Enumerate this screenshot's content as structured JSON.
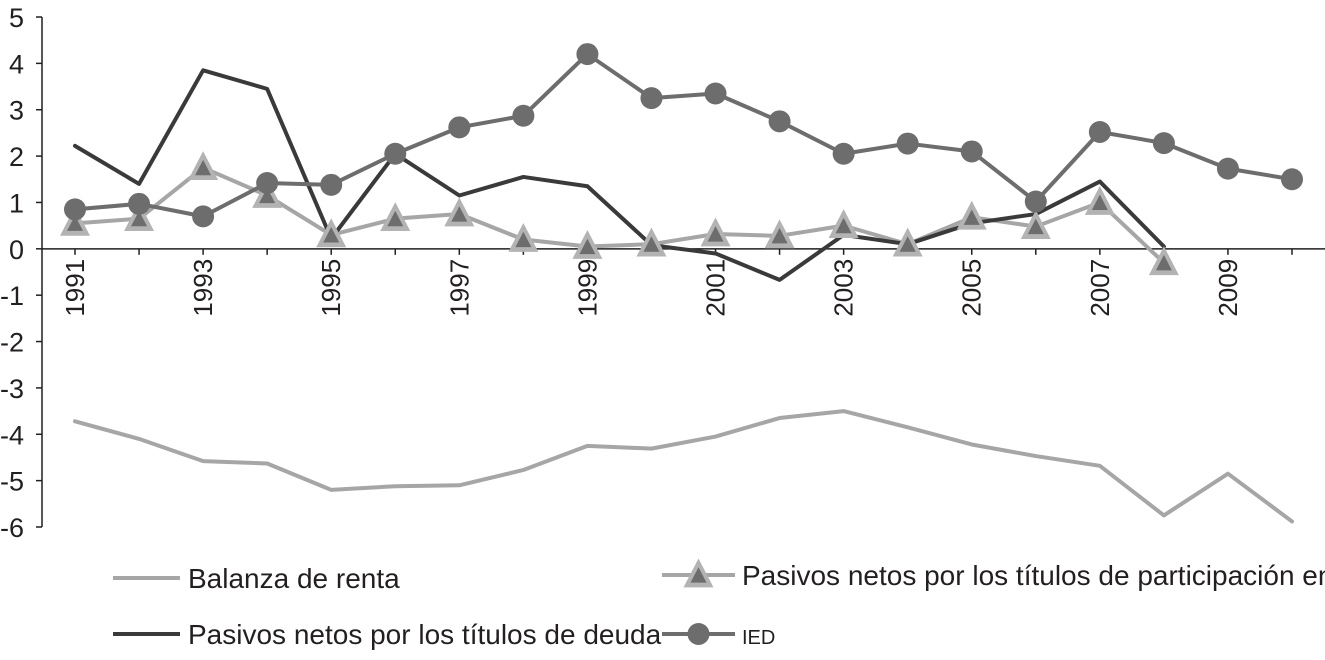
{
  "chart_data": {
    "type": "line",
    "title": "",
    "xlabel": "",
    "ylabel": "",
    "x": [
      1991,
      1992,
      1993,
      1994,
      1995,
      1996,
      1997,
      1998,
      1999,
      2000,
      2001,
      2002,
      2003,
      2004,
      2005,
      2006,
      2007,
      2008,
      2009,
      2010
    ],
    "x_tick_labels": [
      "1991",
      "1993",
      "1995",
      "1997",
      "1999",
      "2001",
      "2003",
      "2005",
      "2007",
      "2009"
    ],
    "y_tick_labels": [
      "5",
      "4",
      "3",
      "2",
      "1",
      "0",
      "-1",
      "-2",
      "-3",
      "-4",
      "-5",
      "-6"
    ],
    "ylim": [
      -6,
      5
    ],
    "xlim": [
      1991,
      2010
    ],
    "grid": false,
    "legend_position": "bottom",
    "series": [
      {
        "name": "Balanza de renta",
        "color": "#a6a6a6",
        "marker": "none",
        "values": [
          -3.72,
          -4.1,
          -4.58,
          -4.63,
          -5.2,
          -5.12,
          -5.1,
          -4.77,
          -4.25,
          -4.31,
          -4.05,
          -3.65,
          -3.5,
          -3.85,
          -4.22,
          -4.47,
          -4.68,
          -5.75,
          -4.85,
          -5.88
        ]
      },
      {
        "name": "Pasivos netos por los títulos de participación en capital",
        "color": "#a6a6a6",
        "marker": "triangle",
        "values": [
          0.55,
          0.65,
          1.75,
          1.15,
          0.3,
          0.65,
          0.75,
          0.2,
          0.05,
          0.1,
          0.32,
          0.28,
          0.5,
          0.1,
          0.68,
          0.48,
          1.0,
          -0.3,
          null,
          null
        ]
      },
      {
        "name": "Pasivos netos por los títulos de deuda",
        "color": "#3a3a3a",
        "marker": "none",
        "values": [
          2.22,
          1.4,
          3.85,
          3.45,
          0.22,
          2.05,
          1.15,
          1.55,
          1.35,
          0.08,
          -0.1,
          -0.67,
          0.3,
          0.1,
          0.55,
          0.75,
          1.45,
          0.05,
          null,
          null
        ]
      },
      {
        "name": "IED",
        "color": "#6d6d6d",
        "marker": "circle",
        "values": [
          0.85,
          0.97,
          0.7,
          1.42,
          1.38,
          2.05,
          2.62,
          2.87,
          4.2,
          3.25,
          3.35,
          2.75,
          2.05,
          2.27,
          2.1,
          1.02,
          2.52,
          2.28,
          1.73,
          1.5
        ]
      }
    ]
  }
}
